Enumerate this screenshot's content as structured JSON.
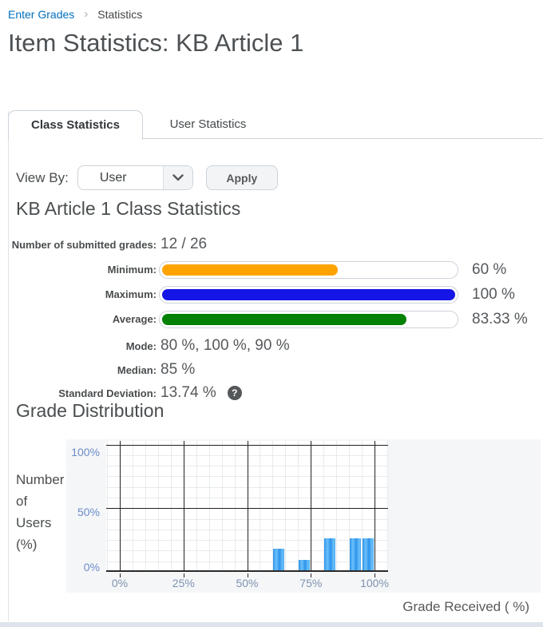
{
  "breadcrumb": {
    "items": [
      {
        "label": "Enter Grades"
      },
      {
        "label": "Statistics"
      }
    ]
  },
  "page": {
    "title": "Item Statistics: KB Article 1"
  },
  "tabs": [
    {
      "label": "Class Statistics",
      "active": true
    },
    {
      "label": "User Statistics",
      "active": false
    }
  ],
  "controls": {
    "view_by_label": "View By:",
    "view_by_value": "User",
    "apply_label": "Apply"
  },
  "class_stats": {
    "heading": "KB Article 1 Class Statistics",
    "submitted": {
      "label": "Number of submitted grades:",
      "value": "12 / 26"
    },
    "minimum": {
      "label": "Minimum:",
      "value": "60 %",
      "percent": 60,
      "color": "#ffa301"
    },
    "maximum": {
      "label": "Maximum:",
      "value": "100 %",
      "percent": 100,
      "color": "#1515e8"
    },
    "average": {
      "label": "Average:",
      "value": "83.33 %",
      "percent": 83.33,
      "color": "#028102"
    },
    "mode": {
      "label": "Mode:",
      "value": "80 %, 100 %, 90 %"
    },
    "median": {
      "label": "Median:",
      "value": "85 %"
    },
    "std_dev": {
      "label": "Standard Deviation:",
      "value": "13.74 %",
      "help_icon": "question-mark"
    }
  },
  "distribution": {
    "heading": "Grade Distribution",
    "y_axis_label_lines": "Number\nof\nUsers\n(%)"
  },
  "chart_data": {
    "type": "bar",
    "title": "Grade Distribution",
    "xlabel": "Grade Received ( %)",
    "ylabel": "Number of Users (%)",
    "xlim": [
      0,
      100
    ],
    "ylim": [
      0,
      100
    ],
    "x_ticks": [
      "0%",
      "25%",
      "50%",
      "75%",
      "100%"
    ],
    "y_ticks": [
      "0%",
      "50%",
      "100%"
    ],
    "grid": {
      "minor_x_step": 5,
      "minor_y_step": 8.333,
      "major_x_step": 25,
      "major_y": [
        50,
        100
      ],
      "grid_on": true
    },
    "bin_width": 5,
    "bars": [
      {
        "range": [
          60,
          65
        ],
        "value": 16.67
      },
      {
        "range": [
          70,
          75
        ],
        "value": 8.33
      },
      {
        "range": [
          80,
          85
        ],
        "value": 25
      },
      {
        "range": [
          90,
          95
        ],
        "value": 25
      },
      {
        "range": [
          95,
          100
        ],
        "value": 25
      }
    ],
    "bar_color": "#3b9cf0",
    "legend": "none"
  },
  "colors": {
    "accent_link": "#006fbf",
    "chart_background": "#f5f6f8",
    "bottom_strip": "#dde4ec"
  }
}
